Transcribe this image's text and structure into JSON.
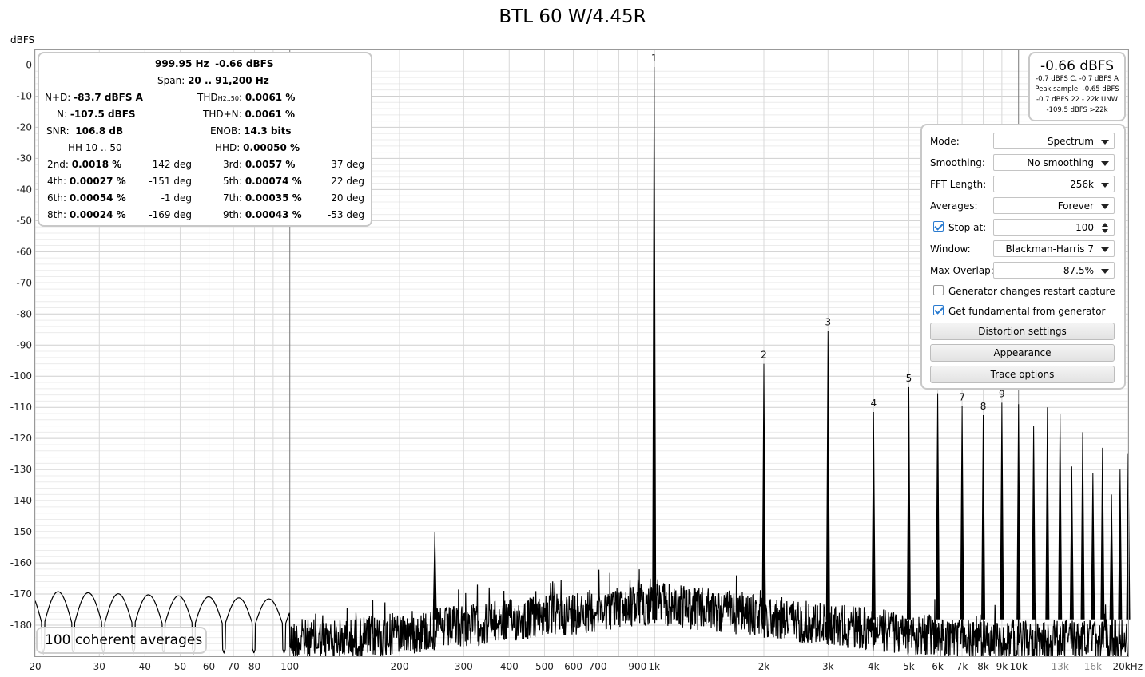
{
  "chart_data": {
    "type": "line",
    "title": "BTL 60 W/4.45R",
    "ylabel": "dBFS",
    "xscale": "log",
    "xlim": [
      20,
      20000
    ],
    "ylim": [
      -190,
      5
    ],
    "grid": true,
    "y_ticks": [
      "0",
      "-10",
      "-20",
      "-30",
      "-40",
      "-50",
      "-60",
      "-70",
      "-80",
      "-90",
      "-100",
      "-110",
      "-120",
      "-130",
      "-140",
      "-150",
      "-160",
      "-170",
      "-180"
    ],
    "y_tick_values": [
      0,
      -10,
      -20,
      -30,
      -40,
      -50,
      -60,
      -70,
      -80,
      -90,
      -100,
      -110,
      -120,
      -130,
      -140,
      -150,
      -160,
      -170,
      -180
    ],
    "x_ticks": [
      {
        "v": 20,
        "t": "20"
      },
      {
        "v": 30,
        "t": "30"
      },
      {
        "v": 40,
        "t": "40"
      },
      {
        "v": 50,
        "t": "50"
      },
      {
        "v": 60,
        "t": "60"
      },
      {
        "v": 70,
        "t": "70"
      },
      {
        "v": 80,
        "t": "80"
      },
      {
        "v": 100,
        "t": "100"
      },
      {
        "v": 200,
        "t": "200"
      },
      {
        "v": 300,
        "t": "300"
      },
      {
        "v": 400,
        "t": "400"
      },
      {
        "v": 500,
        "t": "500"
      },
      {
        "v": 600,
        "t": "600"
      },
      {
        "v": 700,
        "t": "700"
      },
      {
        "v": 900,
        "t": "900"
      },
      {
        "v": 1000,
        "t": "1k"
      },
      {
        "v": 2000,
        "t": "2k"
      },
      {
        "v": 3000,
        "t": "3k"
      },
      {
        "v": 4000,
        "t": "4k"
      },
      {
        "v": 5000,
        "t": "5k"
      },
      {
        "v": 6000,
        "t": "6k"
      },
      {
        "v": 7000,
        "t": "7k"
      },
      {
        "v": 8000,
        "t": "8k"
      },
      {
        "v": 9000,
        "t": "9k"
      },
      {
        "v": 10000,
        "t": "10k"
      },
      {
        "v": 13000,
        "t": "13k"
      },
      {
        "v": 16000,
        "t": "16k"
      },
      {
        "v": 20000,
        "t": "20kHz"
      }
    ],
    "harmonics": [
      {
        "label": "1",
        "freq": 1000,
        "level": -0.66
      },
      {
        "label": "2",
        "freq": 2000,
        "level": -96
      },
      {
        "label": "3",
        "freq": 3000,
        "level": -85.5
      },
      {
        "label": "4",
        "freq": 4000,
        "level": -111.5
      },
      {
        "label": "5",
        "freq": 5000,
        "level": -103.5
      },
      {
        "label": "6",
        "freq": 6000,
        "level": -105.5
      },
      {
        "label": "7",
        "freq": 7000,
        "level": -109.5
      },
      {
        "label": "8",
        "freq": 8000,
        "level": -112.5
      },
      {
        "label": "9",
        "freq": 9000,
        "level": -108.5
      }
    ],
    "extra_harmonics": [
      {
        "freq": 10000,
        "level": -109
      },
      {
        "freq": 11000,
        "level": -116
      },
      {
        "freq": 12000,
        "level": -110
      },
      {
        "freq": 13000,
        "level": -112
      },
      {
        "freq": 14000,
        "level": -129
      },
      {
        "freq": 15000,
        "level": -118
      },
      {
        "freq": 16000,
        "level": -131
      },
      {
        "freq": 17000,
        "level": -123
      },
      {
        "freq": 18000,
        "level": -138
      },
      {
        "freq": 19000,
        "level": -130
      },
      {
        "freq": 20000,
        "level": -125
      }
    ],
    "spurs": [
      {
        "freq": 250,
        "level": -150
      }
    ],
    "noise_floor": -178
  },
  "stats": {
    "freq": "999.95 Hz",
    "level": "-0.66 dBFS",
    "span_label": "Span:",
    "span": "20 .. 91,200 Hz",
    "nd_label": "N+D:",
    "nd": "-83.7 dBFS A",
    "thd_label_main": "THD",
    "thd_label_sub": "H2..50",
    "thd_label_end": ":",
    "thd": "0.0061 %",
    "n_label": "N:",
    "n": "-107.5 dBFS",
    "thdn_label": "THD+N:",
    "thdn": "0.0061 %",
    "snr_label": "SNR:",
    "snr": "106.8 dB",
    "enob_label": "ENOB:",
    "enob": "14.3 bits",
    "hh_label": "HH 10 .. 50",
    "hhd_label": "HHD:",
    "hhd": "0.00050 %",
    "harm": [
      {
        "l": "2nd:",
        "v": "0.0018 %",
        "p": "142 deg",
        "l2": "3rd:",
        "v2": "0.0057 %",
        "p2": "37 deg"
      },
      {
        "l": "4th:",
        "v": "0.00027 %",
        "p": "-151 deg",
        "l2": "5th:",
        "v2": "0.00074 %",
        "p2": "22 deg"
      },
      {
        "l": "6th:",
        "v": "0.00054 %",
        "p": "-1 deg",
        "l2": "7th:",
        "v2": "0.00035 %",
        "p2": "20 deg"
      },
      {
        "l": "8th:",
        "v": "0.00024 %",
        "p": "-169 deg",
        "l2": "9th:",
        "v2": "0.00043 %",
        "p2": "-53 deg"
      }
    ]
  },
  "level_box": {
    "big": "-0.66 dBFS",
    "l1": "-0.7 dBFS C, -0.7 dBFS A",
    "l2": "Peak sample: -0.65 dBFS",
    "l3": "-0.7 dBFS 22 - 22k UNW",
    "l4": "-109.5 dBFS >22k"
  },
  "settings": {
    "mode_label": "Mode:",
    "mode": "Spectrum",
    "smoothing_label": "Smoothing:",
    "smoothing": "No smoothing",
    "fft_label": "FFT Length:",
    "fft": "256k",
    "averages_label": "Averages:",
    "averages": "Forever",
    "stop_label": "Stop at:",
    "stop": "100",
    "window_label": "Window:",
    "window": "Blackman-Harris 7",
    "overlap_label": "Max Overlap:",
    "overlap": "87.5%",
    "gen_restart_label": "Generator changes restart capture",
    "fund_label": "Get fundamental from generator",
    "distortion_btn": "Distortion settings",
    "appearance_btn": "Appearance",
    "trace_btn": "Trace options"
  },
  "averages_badge": "100 coherent averages"
}
